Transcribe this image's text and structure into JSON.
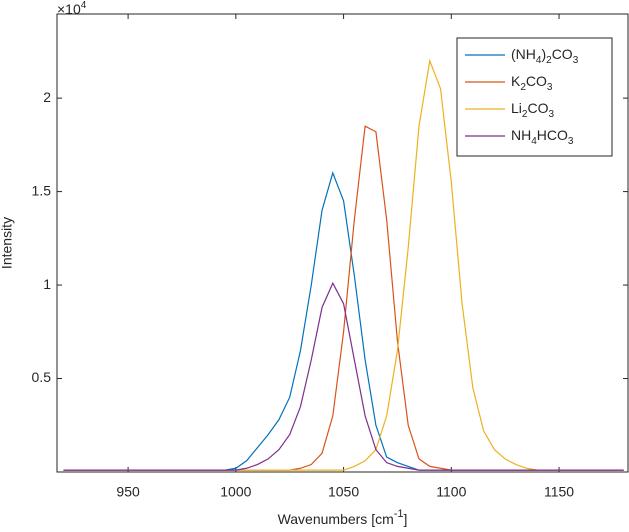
{
  "chart_data": {
    "type": "line",
    "y_label": "Intensity",
    "x_label": [
      "Wavenumbers [cm",
      "-1",
      "]"
    ],
    "y_multiplier": {
      "base": "×10",
      "power": "4"
    },
    "x": [
      920,
      925,
      930,
      935,
      940,
      945,
      950,
      955,
      960,
      965,
      970,
      975,
      980,
      985,
      990,
      995,
      1000,
      1005,
      1010,
      1015,
      1020,
      1025,
      1030,
      1035,
      1040,
      1045,
      1050,
      1055,
      1060,
      1065,
      1070,
      1075,
      1080,
      1085,
      1090,
      1095,
      1100,
      1105,
      1110,
      1115,
      1120,
      1125,
      1130,
      1135,
      1140,
      1145,
      1150,
      1155,
      1160,
      1165,
      1170,
      1175,
      1180
    ],
    "series": [
      {
        "name": "(NH4)2CO3",
        "color": "#0072BD",
        "values": [
          0.01,
          0.01,
          0.01,
          0.01,
          0.01,
          0.01,
          0.01,
          0.01,
          0.01,
          0.01,
          0.01,
          0.01,
          0.01,
          0.01,
          0.01,
          0.01,
          0.02,
          0.06,
          0.13,
          0.2,
          0.28,
          0.4,
          0.65,
          1.0,
          1.4,
          1.6,
          1.45,
          1.05,
          0.6,
          0.25,
          0.08,
          0.05,
          0.03,
          0.01,
          0.01,
          0.01,
          0.01,
          0.01,
          0.01,
          0.01,
          0.01,
          0.01,
          0.01,
          0.01,
          0.01,
          0.01,
          0.01,
          0.01,
          0.01,
          0.01,
          0.01,
          0.01,
          0.01
        ]
      },
      {
        "name": "K2CO3",
        "color": "#D95319",
        "values": [
          0.01,
          0.01,
          0.01,
          0.01,
          0.01,
          0.01,
          0.01,
          0.01,
          0.01,
          0.01,
          0.01,
          0.01,
          0.01,
          0.01,
          0.01,
          0.01,
          0.01,
          0.01,
          0.01,
          0.01,
          0.01,
          0.01,
          0.02,
          0.04,
          0.1,
          0.3,
          0.75,
          1.35,
          1.85,
          1.82,
          1.35,
          0.7,
          0.25,
          0.07,
          0.03,
          0.02,
          0.01,
          0.01,
          0.01,
          0.01,
          0.01,
          0.01,
          0.01,
          0.01,
          0.01,
          0.01,
          0.01,
          0.01,
          0.01,
          0.01,
          0.01,
          0.01,
          0.01
        ]
      },
      {
        "name": "Li2CO3",
        "color": "#EDB120",
        "values": [
          0.01,
          0.01,
          0.01,
          0.01,
          0.01,
          0.01,
          0.01,
          0.01,
          0.01,
          0.01,
          0.01,
          0.01,
          0.01,
          0.01,
          0.01,
          0.01,
          0.01,
          0.01,
          0.01,
          0.01,
          0.01,
          0.01,
          0.01,
          0.01,
          0.01,
          0.01,
          0.01,
          0.03,
          0.06,
          0.12,
          0.3,
          0.65,
          1.2,
          1.85,
          2.2,
          2.05,
          1.55,
          0.9,
          0.45,
          0.22,
          0.12,
          0.07,
          0.04,
          0.02,
          0.01,
          0.01,
          0.01,
          0.01,
          0.01,
          0.01,
          0.01,
          0.01,
          0.01
        ]
      },
      {
        "name": "NH4HCO3",
        "color": "#7E2F8E",
        "values": [
          0.01,
          0.01,
          0.01,
          0.01,
          0.01,
          0.01,
          0.01,
          0.01,
          0.01,
          0.01,
          0.01,
          0.01,
          0.01,
          0.01,
          0.01,
          0.01,
          0.01,
          0.02,
          0.04,
          0.07,
          0.12,
          0.2,
          0.35,
          0.6,
          0.88,
          1.01,
          0.9,
          0.6,
          0.3,
          0.12,
          0.05,
          0.03,
          0.02,
          0.01,
          0.01,
          0.01,
          0.01,
          0.01,
          0.01,
          0.01,
          0.01,
          0.01,
          0.01,
          0.01,
          0.01,
          0.01,
          0.01,
          0.01,
          0.01,
          0.01,
          0.01,
          0.01,
          0.01
        ]
      }
    ],
    "xlim": [
      917,
      1182
    ],
    "ylim": [
      0,
      2.45
    ],
    "xticks": [
      950,
      1000,
      1050,
      1100,
      1150
    ],
    "yticks": [
      0.5,
      1,
      1.5,
      2
    ],
    "grid": false,
    "legend": "top-right"
  }
}
